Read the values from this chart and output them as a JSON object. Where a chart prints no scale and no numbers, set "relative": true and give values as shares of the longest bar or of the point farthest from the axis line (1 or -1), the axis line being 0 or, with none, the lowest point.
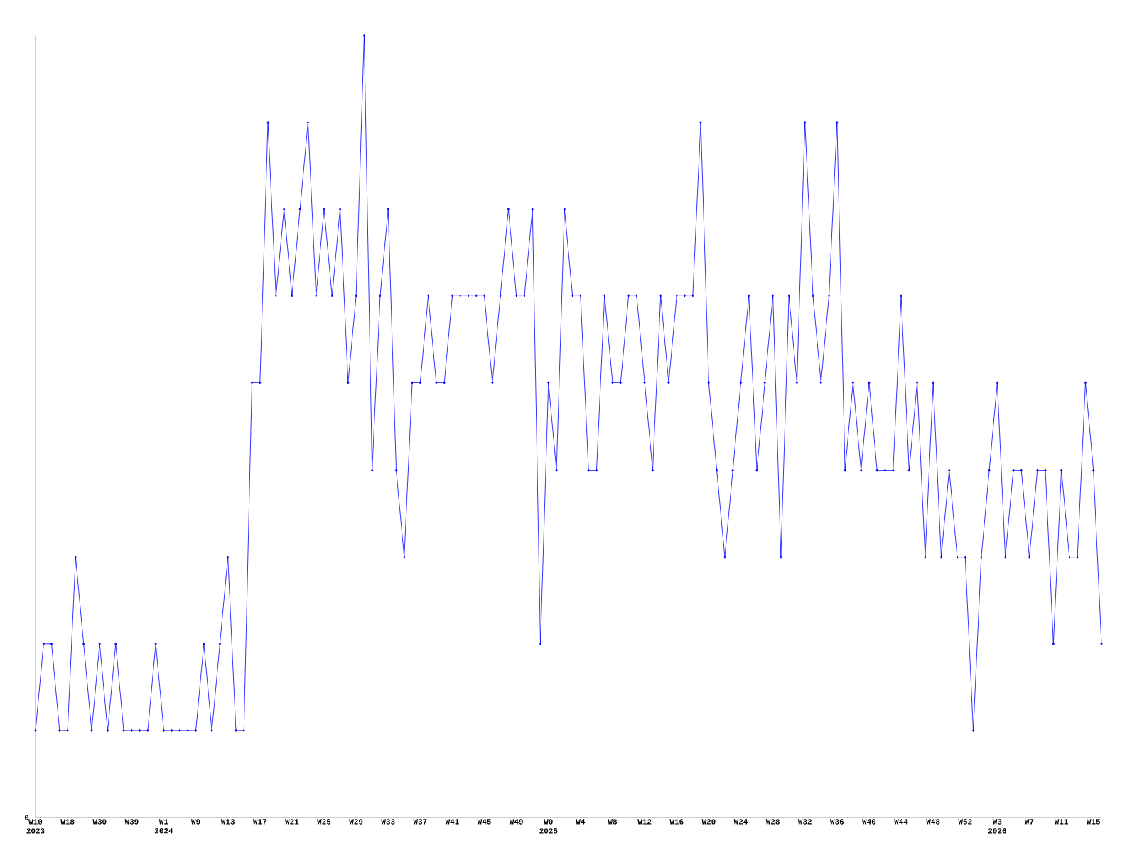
{
  "chart_data": {
    "type": "line",
    "relative": true,
    "color": "#0000ff",
    "marker": "diamond",
    "annotations": [
      "0"
    ],
    "categories": [
      "W10 2023",
      null,
      null,
      null,
      "W18",
      null,
      null,
      null,
      "W30",
      null,
      null,
      null,
      "W39",
      null,
      null,
      null,
      "W1 2024",
      null,
      null,
      null,
      "W9",
      null,
      null,
      null,
      "W13",
      null,
      null,
      null,
      "W17",
      null,
      null,
      null,
      "W21",
      null,
      null,
      null,
      "W25",
      null,
      null,
      null,
      "W29",
      null,
      null,
      null,
      "W33",
      null,
      null,
      null,
      "W37",
      null,
      null,
      null,
      "W41",
      null,
      null,
      null,
      "W45",
      null,
      null,
      null,
      "W49",
      null,
      null,
      null,
      "W0 2025",
      null,
      null,
      null,
      "W4",
      null,
      null,
      null,
      "W8",
      null,
      null,
      null,
      "W12",
      null,
      null,
      null,
      "W16",
      null,
      null,
      null,
      "W20",
      null,
      null,
      null,
      "W24",
      null,
      null,
      null,
      "W28",
      null,
      null,
      null,
      "W32",
      null,
      null,
      null,
      "W36",
      null,
      null,
      null,
      "W40",
      null,
      null,
      null,
      "W44",
      null,
      null,
      null,
      "W48",
      null,
      null,
      null,
      "W52",
      null,
      null,
      null,
      "W3 2026",
      null,
      null,
      null,
      "W7",
      null,
      null,
      null,
      "W11",
      null,
      null,
      null,
      "W15",
      null
    ],
    "values": [
      0.111,
      0.222,
      0.222,
      0.111,
      0.111,
      0.333,
      0.222,
      0.111,
      0.222,
      0.111,
      0.222,
      0.111,
      0.111,
      0.111,
      0.111,
      0.222,
      0.111,
      0.111,
      0.111,
      0.111,
      0.111,
      0.222,
      0.111,
      0.222,
      0.333,
      0.111,
      0.111,
      0.556,
      0.556,
      0.889,
      0.667,
      0.778,
      0.667,
      0.778,
      0.889,
      0.667,
      0.778,
      0.667,
      0.778,
      0.556,
      0.667,
      1,
      0.444,
      0.667,
      0.778,
      0.444,
      0.333,
      0.556,
      0.556,
      0.667,
      0.556,
      0.556,
      0.667,
      0.667,
      0.667,
      0.667,
      0.667,
      0.556,
      0.667,
      0.778,
      0.667,
      0.667,
      0.778,
      0.222,
      0.556,
      0.444,
      0.778,
      0.667,
      0.667,
      0.444,
      0.444,
      0.667,
      0.556,
      0.556,
      0.667,
      0.667,
      0.556,
      0.444,
      0.667,
      0.556,
      0.667,
      0.667,
      0.667,
      0.889,
      0.556,
      0.444,
      0.333,
      0.444,
      0.556,
      0.667,
      0.444,
      0.556,
      0.667,
      0.333,
      0.667,
      0.556,
      0.889,
      0.667,
      0.556,
      0.667,
      0.889,
      0.444,
      0.556,
      0.444,
      0.556,
      0.444,
      0.444,
      0.444,
      0.667,
      0.444,
      0.556,
      0.333,
      0.556,
      0.333,
      0.444,
      0.333,
      0.333,
      0.111,
      0.333,
      0.444,
      0.556,
      0.333,
      0.444,
      0.444,
      0.333,
      0.444,
      0.444,
      0.222,
      0.444,
      0.333,
      0.333,
      0.556,
      0.444,
      0.222
    ]
  }
}
